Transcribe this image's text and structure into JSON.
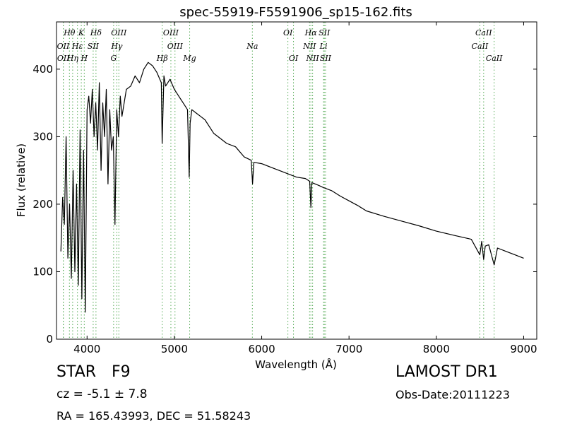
{
  "chart_data": {
    "type": "line",
    "title": "spec-55919-F5591906_sp15-162.fits",
    "xlabel": "Wavelength (Å)",
    "ylabel": "Flux (relative)",
    "xlim": [
      3650,
      9150
    ],
    "ylim": [
      0,
      470
    ],
    "x_ticks": [
      4000,
      5000,
      6000,
      7000,
      8000,
      9000
    ],
    "y_ticks": [
      0,
      100,
      200,
      300,
      400
    ],
    "grid": false,
    "line_color": "#000000",
    "marker_color": "#55aa55",
    "series": [
      {
        "x": [
          3700,
          3720,
          3740,
          3760,
          3780,
          3800,
          3820,
          3840,
          3860,
          3880,
          3900,
          3920,
          3940,
          3960,
          3980,
          4000,
          4020,
          4040,
          4060,
          4080,
          4100,
          4120,
          4140,
          4160,
          4180,
          4200,
          4220,
          4240,
          4260,
          4280,
          4300,
          4320,
          4340,
          4360,
          4380,
          4400,
          4450,
          4500,
          4550,
          4600,
          4650,
          4700,
          4750,
          4800,
          4850,
          4860,
          4880,
          4900,
          4950,
          5000,
          5050,
          5100,
          5150,
          5170,
          5180,
          5200,
          5250,
          5300,
          5350,
          5400,
          5450,
          5500,
          5600,
          5700,
          5800,
          5880,
          5895,
          5910,
          6000,
          6100,
          6200,
          6300,
          6400,
          6500,
          6550,
          6563,
          6575,
          6650,
          6700,
          6800,
          6900,
          7000,
          7100,
          7200,
          7400,
          7600,
          7800,
          8000,
          8200,
          8400,
          8498,
          8520,
          8542,
          8560,
          8600,
          8662,
          8700,
          8800,
          8900,
          9000
        ],
        "y": [
          130,
          210,
          170,
          300,
          120,
          200,
          90,
          250,
          100,
          230,
          80,
          310,
          60,
          280,
          40,
          340,
          360,
          320,
          370,
          300,
          350,
          280,
          380,
          250,
          350,
          300,
          370,
          230,
          340,
          280,
          300,
          170,
          340,
          300,
          360,
          330,
          370,
          375,
          390,
          380,
          400,
          410,
          405,
          395,
          380,
          290,
          390,
          375,
          385,
          370,
          360,
          350,
          340,
          240,
          320,
          340,
          335,
          330,
          325,
          315,
          305,
          300,
          290,
          285,
          270,
          265,
          230,
          262,
          260,
          255,
          250,
          245,
          240,
          238,
          234,
          195,
          232,
          228,
          225,
          220,
          212,
          205,
          198,
          190,
          182,
          175,
          168,
          160,
          154,
          148,
          125,
          145,
          118,
          138,
          140,
          110,
          135,
          130,
          125,
          120
        ]
      }
    ],
    "lines": [
      {
        "label": "Hθ",
        "x": 3798,
        "row": 1
      },
      {
        "label": "K",
        "x": 3934,
        "row": 1
      },
      {
        "label": "Hδ",
        "x": 4102,
        "row": 1
      },
      {
        "label": "OIII",
        "x": 4364,
        "row": 1
      },
      {
        "label": "OIII",
        "x": 4960,
        "row": 1
      },
      {
        "label": "OI",
        "x": 6300,
        "row": 1
      },
      {
        "label": "Hα",
        "x": 6563,
        "row": 1
      },
      {
        "label": "SII",
        "x": 6717,
        "row": 1
      },
      {
        "label": "CaII",
        "x": 8542,
        "row": 1
      },
      {
        "label": "OII",
        "x": 3727,
        "row": 2
      },
      {
        "label": "Hε",
        "x": 3890,
        "row": 2
      },
      {
        "label": "SII",
        "x": 4070,
        "row": 2
      },
      {
        "label": "Hγ",
        "x": 4341,
        "row": 2
      },
      {
        "label": "OIII",
        "x": 5007,
        "row": 2
      },
      {
        "label": "Na",
        "x": 5893,
        "row": 2
      },
      {
        "label": "NII",
        "x": 6548,
        "row": 2
      },
      {
        "label": "Li",
        "x": 6708,
        "row": 2
      },
      {
        "label": "CaII",
        "x": 8498,
        "row": 2
      },
      {
        "label": "OII",
        "x": 3729,
        "row": 3
      },
      {
        "label": "Hη",
        "x": 3835,
        "row": 3
      },
      {
        "label": "H",
        "x": 3968,
        "row": 3
      },
      {
        "label": "G",
        "x": 4304,
        "row": 3
      },
      {
        "label": "Hβ",
        "x": 4861,
        "row": 3
      },
      {
        "label": "Mg",
        "x": 5175,
        "row": 3
      },
      {
        "label": "OI",
        "x": 6364,
        "row": 3
      },
      {
        "label": "NII",
        "x": 6583,
        "row": 3
      },
      {
        "label": "SII",
        "x": 6731,
        "row": 3
      },
      {
        "label": "CaII",
        "x": 8662,
        "row": 3
      }
    ]
  },
  "info": {
    "class_label": "STAR",
    "subclass": "F9",
    "cz": "cz = -5.1  ± 7.8",
    "survey": "LAMOST DR1",
    "obs_date": "Obs-Date:20111223",
    "radec": "RA = 165.43993, DEC = 51.58243"
  }
}
